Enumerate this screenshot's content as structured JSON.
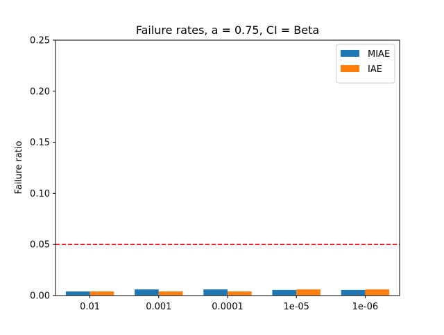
{
  "chart_data": {
    "type": "bar",
    "title": "Failure rates, a = 0.75, CI = Beta",
    "xlabel": "",
    "ylabel": "Failure ratio",
    "categories": [
      "0.01",
      "0.001",
      "0.0001",
      "1e-05",
      "1e-06"
    ],
    "series": [
      {
        "name": "MIAE",
        "color": "#1f77b4",
        "values": [
          0.004,
          0.006,
          0.006,
          0.0055,
          0.0055
        ]
      },
      {
        "name": "IAE",
        "color": "#ff7f0e",
        "values": [
          0.004,
          0.004,
          0.004,
          0.006,
          0.006
        ]
      }
    ],
    "ylim": [
      0,
      0.25
    ],
    "yticks": [
      "0.00",
      "0.05",
      "0.10",
      "0.15",
      "0.20",
      "0.25"
    ],
    "yticks_values": [
      0,
      0.05,
      0.1,
      0.15,
      0.2,
      0.25
    ],
    "reference_line": {
      "y": 0.05,
      "color": "#ff0000",
      "style": "dashed"
    },
    "legend": "top-right",
    "grid": false
  }
}
